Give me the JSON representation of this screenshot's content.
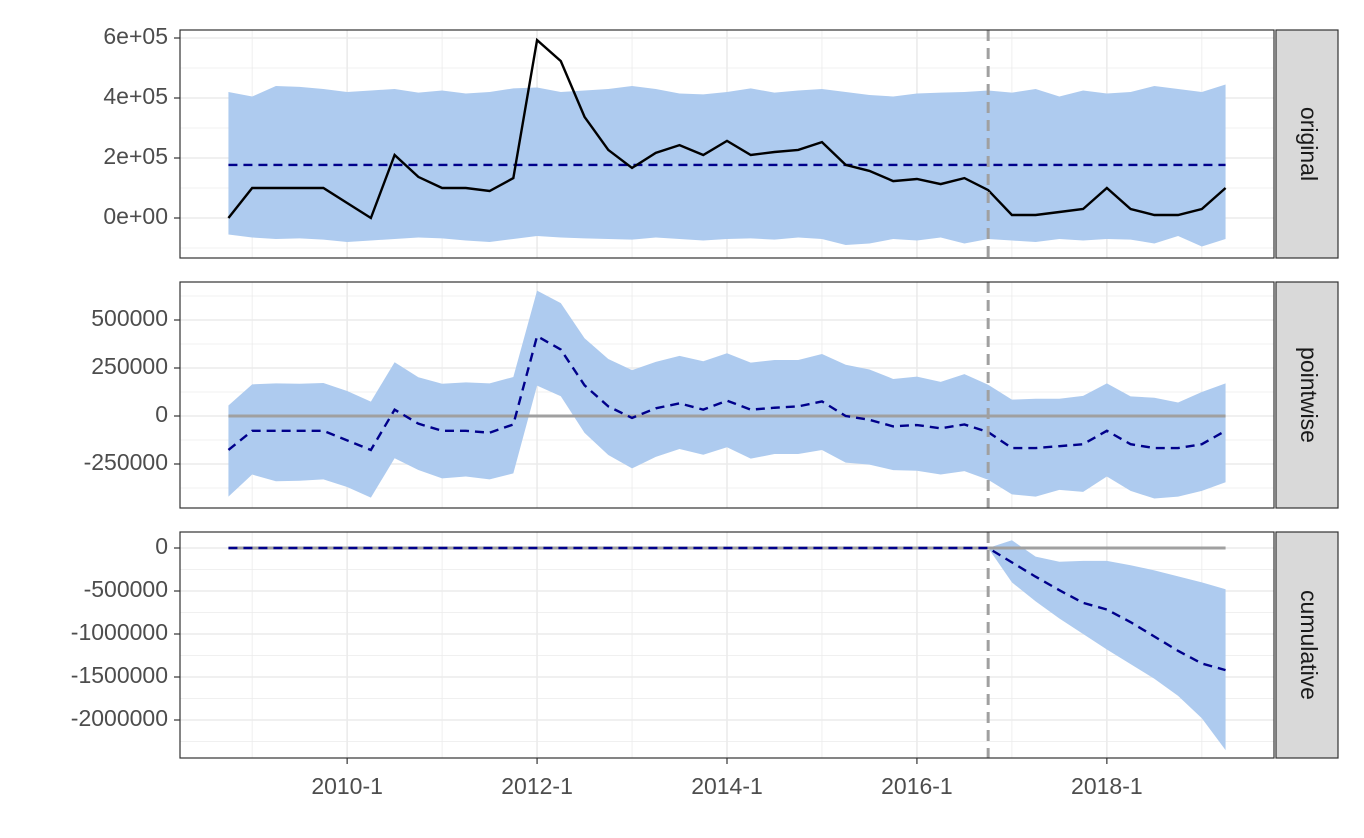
{
  "chart_data": {
    "type": "line",
    "x": [
      2008.75,
      2009,
      2009.25,
      2009.5,
      2009.75,
      2010,
      2010.25,
      2010.5,
      2010.75,
      2011,
      2011.25,
      2011.5,
      2011.75,
      2012,
      2012.25,
      2012.5,
      2012.75,
      2013,
      2013.25,
      2013.5,
      2013.75,
      2014,
      2014.25,
      2014.5,
      2014.75,
      2015,
      2015.25,
      2015.5,
      2015.75,
      2016,
      2016.25,
      2016.5,
      2016.75,
      2017,
      2017.25,
      2017.5,
      2017.75,
      2018,
      2018.25,
      2018.5,
      2018.75,
      2019,
      2019.25
    ],
    "xlim": [
      2008.24,
      2019.76
    ],
    "xticks": [
      {
        "value": 2010,
        "label": "2010-1"
      },
      {
        "value": 2012,
        "label": "2012-1"
      },
      {
        "value": 2014,
        "label": "2014-1"
      },
      {
        "value": 2016,
        "label": "2016-1"
      },
      {
        "value": 2018,
        "label": "2018-1"
      }
    ],
    "intervention": 2016.75,
    "grid": true,
    "panels": [
      {
        "strip": "original",
        "ylim": [
          -133333,
          626667
        ],
        "yticks": [
          {
            "value": 0,
            "label": "0e+00"
          },
          {
            "value": 200000,
            "label": "2e+05"
          },
          {
            "value": 400000,
            "label": "4e+05"
          },
          {
            "value": 600000,
            "label": "6e+05"
          }
        ],
        "band": {
          "color": "#aecbef",
          "lower": [
            -55000,
            -65000,
            -70000,
            -68000,
            -72000,
            -80000,
            -75000,
            -70000,
            -65000,
            -68000,
            -75000,
            -80000,
            -70000,
            -60000,
            -65000,
            -68000,
            -70000,
            -72000,
            -65000,
            -70000,
            -75000,
            -70000,
            -68000,
            -72000,
            -65000,
            -70000,
            -90000,
            -85000,
            -70000,
            -75000,
            -65000,
            -85000,
            -70000,
            -75000,
            -80000,
            -70000,
            -75000,
            -70000,
            -72000,
            -85000,
            -60000,
            -95000,
            -70000
          ],
          "upper": [
            420000,
            405000,
            440000,
            437000,
            430000,
            420000,
            425000,
            430000,
            418000,
            425000,
            415000,
            420000,
            432000,
            435000,
            420000,
            425000,
            430000,
            440000,
            430000,
            415000,
            412000,
            420000,
            432000,
            418000,
            425000,
            430000,
            420000,
            410000,
            405000,
            415000,
            418000,
            420000,
            425000,
            418000,
            430000,
            405000,
            425000,
            415000,
            420000,
            440000,
            430000,
            420000,
            445000
          ]
        },
        "series": [
          {
            "color": "#00008b",
            "dashed": true,
            "values": [
              177000,
              177000,
              177000,
              177000,
              177000,
              177000,
              177000,
              177000,
              177000,
              177000,
              177000,
              177000,
              177000,
              177000,
              177000,
              177000,
              177000,
              177000,
              177000,
              177000,
              177000,
              177000,
              177000,
              177000,
              177000,
              177000,
              177000,
              177000,
              177000,
              177000,
              177000,
              177000,
              177000,
              177000,
              177000,
              177000,
              177000,
              177000,
              177000,
              177000,
              177000,
              177000,
              177000
            ]
          },
          {
            "color": "#000000",
            "dashed": false,
            "values": [
              0,
              100000,
              100000,
              100000,
              100000,
              50000,
              0,
              210000,
              137000,
              100000,
              100000,
              90000,
              133000,
              593000,
              523000,
              337000,
              227000,
              167000,
              217000,
              243000,
              210000,
              257000,
              210000,
              220000,
              227000,
              253000,
              177000,
              157000,
              123000,
              130000,
              113000,
              133000,
              93000,
              10000,
              10000,
              20000,
              30000,
              100000,
              30000,
              10000,
              10000,
              30000,
              100000
            ]
          }
        ]
      },
      {
        "strip": "pointwise",
        "ylim": [
          -479167,
          697917
        ],
        "hline": 0,
        "yticks": [
          -250000,
          0,
          250000,
          500000
        ],
        "band": {
          "color": "#aecbef",
          "lower": [
            -420000,
            -305000,
            -340000,
            -337000,
            -330000,
            -370000,
            -425000,
            -220000,
            -281000,
            -325000,
            -315000,
            -330000,
            -299000,
            158000,
            103000,
            -88000,
            -203000,
            -273000,
            -213000,
            -172000,
            -202000,
            -163000,
            -222000,
            -198000,
            -198000,
            -177000,
            -243000,
            -253000,
            -282000,
            -285000,
            -305000,
            -287000,
            -332000,
            -408000,
            -420000,
            -385000,
            -395000,
            -315000,
            -390000,
            -430000,
            -420000,
            -390000,
            -345000
          ],
          "upper": [
            55000,
            165000,
            170000,
            168000,
            172000,
            130000,
            75000,
            280000,
            202000,
            168000,
            175000,
            170000,
            203000,
            653000,
            588000,
            405000,
            297000,
            239000,
            282000,
            313000,
            285000,
            327000,
            278000,
            292000,
            292000,
            323000,
            267000,
            242000,
            193000,
            205000,
            178000,
            218000,
            163000,
            85000,
            90000,
            90000,
            105000,
            170000,
            102000,
            95000,
            70000,
            125000,
            170000
          ]
        },
        "series": [
          {
            "color": "#00008b",
            "dashed": true,
            "values": [
              -177000,
              -77000,
              -77000,
              -77000,
              -77000,
              -127000,
              -177000,
              33000,
              -40000,
              -77000,
              -77000,
              -87000,
              -44000,
              416000,
              346000,
              160000,
              50000,
              -10000,
              40000,
              66000,
              33000,
              80000,
              33000,
              43000,
              50000,
              76000,
              0,
              -20000,
              -54000,
              -47000,
              -64000,
              -44000,
              -84000,
              -167000,
              -167000,
              -157000,
              -147000,
              -77000,
              -147000,
              -167000,
              -167000,
              -147000,
              -77000
            ]
          }
        ]
      },
      {
        "strip": "cumulative",
        "ylim": [
          -2441860,
          186047
        ],
        "hline": 0,
        "yticks": [
          -2000000,
          -1500000,
          -1000000,
          -500000,
          0
        ],
        "band": {
          "color": "#aecbef",
          "lower": [
            0,
            0,
            0,
            0,
            0,
            0,
            0,
            0,
            0,
            0,
            0,
            0,
            0,
            0,
            0,
            0,
            0,
            0,
            0,
            0,
            0,
            0,
            0,
            0,
            0,
            0,
            0,
            0,
            0,
            0,
            0,
            0,
            0,
            -400000,
            -620000,
            -820000,
            -1000000,
            -1180000,
            -1350000,
            -1520000,
            -1720000,
            -1980000,
            -2350000
          ],
          "upper": [
            0,
            0,
            0,
            0,
            0,
            0,
            0,
            0,
            0,
            0,
            0,
            0,
            0,
            0,
            0,
            0,
            0,
            0,
            0,
            0,
            0,
            0,
            0,
            0,
            0,
            0,
            0,
            0,
            0,
            0,
            0,
            0,
            0,
            90000,
            -100000,
            -160000,
            -150000,
            -150000,
            -200000,
            -260000,
            -330000,
            -400000,
            -480000
          ]
        },
        "series": [
          {
            "color": "#00008b",
            "dashed": true,
            "values": [
              0,
              0,
              0,
              0,
              0,
              0,
              0,
              0,
              0,
              0,
              0,
              0,
              0,
              0,
              0,
              0,
              0,
              0,
              0,
              0,
              0,
              0,
              0,
              0,
              0,
              0,
              0,
              0,
              0,
              0,
              0,
              0,
              0,
              -167000,
              -334000,
              -491000,
              -638000,
              -715000,
              -862000,
              -1029000,
              -1196000,
              -1343000,
              -1420000
            ]
          }
        ]
      }
    ]
  }
}
